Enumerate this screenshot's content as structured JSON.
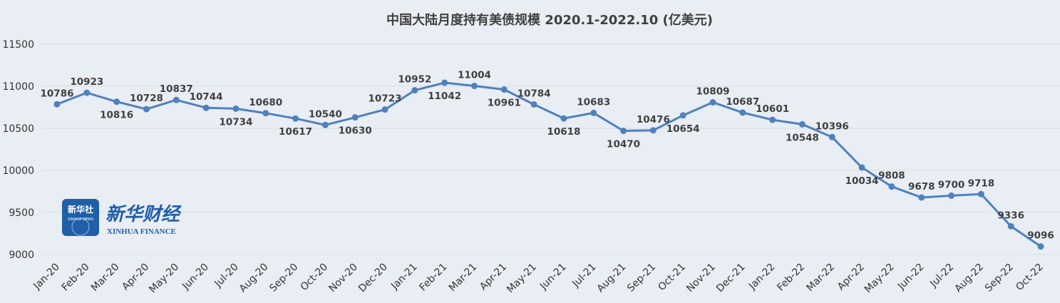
{
  "colors": {
    "background": "#e9edf4",
    "line": "#4f81bd",
    "grid": "#d9dde5",
    "text": "#404040",
    "logo_blue": "#1f5fa8"
  },
  "logo": {
    "badge_text": "新华社",
    "badge_subtext": "XINHUA NEWS",
    "brand_text": "新华财经",
    "brand_subtext": "XINHUA FINANCE"
  },
  "chart_data": {
    "type": "line",
    "title": "中国大陆月度持有美债规模 2020.1-2022.10 (亿美元)",
    "xlabel": "",
    "ylabel": "",
    "ylim": [
      9000,
      11500
    ],
    "yticks": [
      9000,
      9500,
      10000,
      10500,
      11000,
      11500
    ],
    "grid": true,
    "legend": "none",
    "categories": [
      "Jan-20",
      "Feb-20",
      "Mar-20",
      "Apr-20",
      "May-20",
      "Jun-20",
      "Jul-20",
      "Aug-20",
      "Sep-20",
      "Oct-20",
      "Nov-20",
      "Dec-20",
      "Jan-21",
      "Feb-21",
      "Mar-21",
      "Apr-21",
      "May-21",
      "Jun-21",
      "Jul-21",
      "Aug-21",
      "Sep-21",
      "Oct-21",
      "Nov-21",
      "Dec-21",
      "Jan-22",
      "Feb-22",
      "Mar-22",
      "Apr-22",
      "May-22",
      "Jun-22",
      "Jul-22",
      "Aug-22",
      "Sep-22",
      "Oct-22"
    ],
    "series": [
      {
        "values": [
          10786,
          10923,
          10816,
          10728,
          10837,
          10744,
          10734,
          10680,
          10617,
          10540,
          10630,
          10723,
          10952,
          11042,
          11004,
          10961,
          10784,
          10618,
          10683,
          10470,
          10476,
          10654,
          10809,
          10687,
          10601,
          10548,
          10396,
          10034,
          9808,
          9678,
          9700,
          9718,
          9336,
          9096
        ],
        "label_position": [
          "above",
          "above",
          "below",
          "above",
          "above",
          "above",
          "below",
          "above",
          "below",
          "above",
          "below",
          "above",
          "above",
          "below",
          "above",
          "below",
          "above",
          "below",
          "above",
          "below",
          "above",
          "below",
          "above",
          "above",
          "above",
          "below",
          "above",
          "below",
          "above",
          "above",
          "above",
          "above",
          "above",
          "above"
        ]
      }
    ]
  }
}
